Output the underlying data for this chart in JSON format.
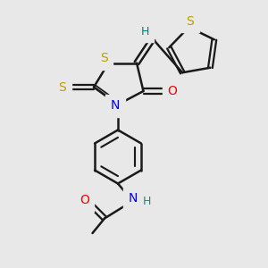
{
  "bg_color": "#e8e8e8",
  "atom_colors": {
    "C": "#000000",
    "H": "#008080",
    "S": "#b8a000",
    "N": "#0000ff",
    "O": "#ff0000"
  },
  "bond_color": "#1a1a1a",
  "bond_width": 1.8,
  "figsize": [
    3.0,
    3.0
  ],
  "dpi": 100
}
